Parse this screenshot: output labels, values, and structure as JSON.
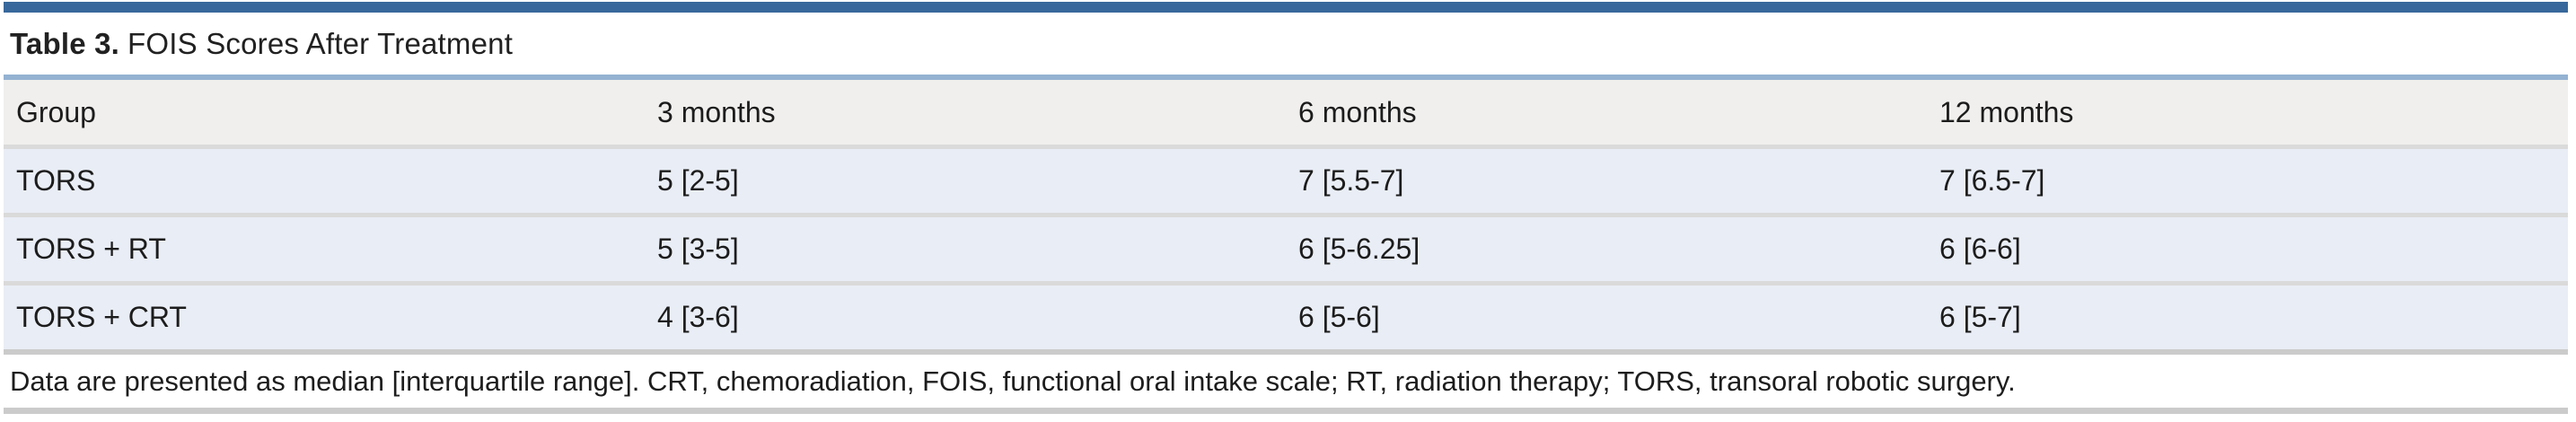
{
  "table": {
    "title_label": "Table 3.",
    "title_text": "FOIS Scores After Treatment",
    "columns": [
      "Group",
      "3 months",
      "6 months",
      "12 months"
    ],
    "rows": [
      [
        "TORS",
        "5 [2-5]",
        "7 [5.5-7]",
        "7 [6.5-7]"
      ],
      [
        "TORS + RT",
        "5 [3-5]",
        "6 [5-6.25]",
        "6 [6-6]"
      ],
      [
        "TORS + CRT",
        "4 [3-6]",
        "6 [5-6]",
        "6 [5-7]"
      ]
    ],
    "footnote": "Data are presented as median [interquartile range]. CRT, chemoradiation, FOIS, functional oral intake scale; RT, radiation therapy; TORS, transoral robotic surgery."
  },
  "colors": {
    "top_rule_blue": "#38689b",
    "accent_rule_light_blue": "#94b2d2",
    "header_row_bg": "#f0efed",
    "data_row_bg": "#e9edf5",
    "separator_gray": "#dadada",
    "outer_rule_gray": "#cbcbcb",
    "text": "#1c1c1c"
  }
}
